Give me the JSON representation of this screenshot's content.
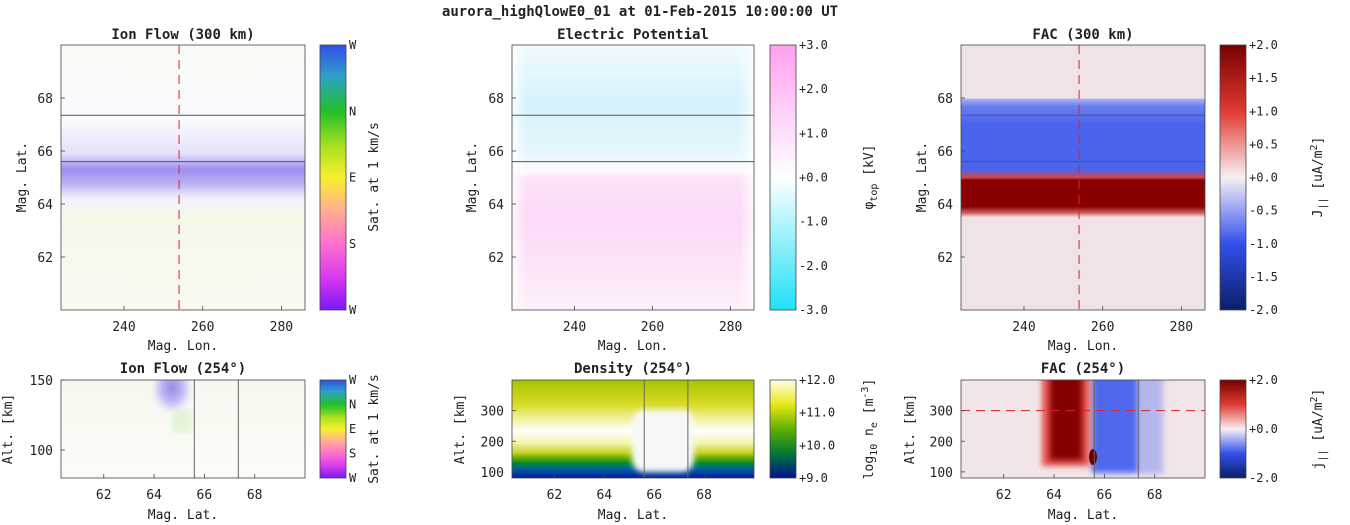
{
  "title": "aurora_highQlowE0_01 at 01-Feb-2015 10:00:00 UT",
  "panels": {
    "ion_flow_top": {
      "title": "Ion Flow (300 km)",
      "xlabel": "Mag. Lon.",
      "ylabel": "Mag. Lat.",
      "cblabel": "Sat. at 1 km/s"
    },
    "potential_top": {
      "title": "Electric Potential",
      "xlabel": "Mag. Lon.",
      "ylabel": "Mag. Lat.",
      "cblabel_main": "φ",
      "cblabel_sub": "top",
      "cblabel_unit": " [kV]"
    },
    "fac_top": {
      "title": "FAC (300 km)",
      "xlabel": "Mag. Lon.",
      "ylabel": "Mag. Lat.",
      "cblabel_main": "J",
      "cblabel_sub": "||",
      "cblabel_unit": " [uA/m",
      "cblabel_sup": "2",
      "cblabel_end": "]"
    },
    "ion_flow_bottom": {
      "title": "Ion Flow (254°)",
      "xlabel": "Mag. Lat.",
      "ylabel": "Alt. [km]",
      "cblabel": "Sat. at 1 km/s"
    },
    "density_bottom": {
      "title": "Density (254°)",
      "xlabel": "Mag. Lat.",
      "ylabel": "Alt. [km]",
      "cblabel_main": "log",
      "cblabel_sub": "10",
      "cblabel_mid": " n",
      "cblabel_sub2": "e",
      "cblabel_unit": " [m",
      "cblabel_sup": "-3",
      "cblabel_end": "]"
    },
    "fac_bottom": {
      "title": "FAC (254°)",
      "xlabel": "Mag. Lat.",
      "ylabel": "Alt. [km]",
      "cblabel_main": "j",
      "cblabel_sub": "||",
      "cblabel_unit": " [uA/m",
      "cblabel_sup": "2",
      "cblabel_end": "]"
    }
  },
  "chart_data": [
    {
      "id": "ion_flow_top",
      "type": "heatmap",
      "xlim": [
        224,
        286
      ],
      "ylim": [
        60,
        70
      ],
      "xticks": [
        240,
        260,
        280
      ],
      "yticks": [
        62,
        64,
        66,
        68
      ],
      "hlines": [
        67.35,
        65.6
      ],
      "vline_dashed": 254,
      "colorbar": {
        "ticks": [
          "W",
          "N",
          "E",
          "S",
          "W"
        ]
      },
      "features": [
        {
          "kind": "band",
          "lat_center": 64.9,
          "width": 1.2,
          "direction": "W"
        }
      ]
    },
    {
      "id": "potential_top",
      "type": "heatmap",
      "xlim": [
        224,
        286
      ],
      "ylim": [
        60,
        70
      ],
      "xticks": [
        240,
        260,
        280
      ],
      "yticks": [
        62,
        64,
        66,
        68
      ],
      "hlines": [
        67.35,
        65.6
      ],
      "colorbar": {
        "range": [
          -3.0,
          3.0
        ],
        "ticks": [
          "+3.0",
          "+2.0",
          "+1.0",
          "+0.0",
          "-1.0",
          "-2.0",
          "-3.0"
        ],
        "colors": [
          "#ffa0f0",
          "#ffffff",
          "#20e0f8"
        ]
      },
      "features": [
        {
          "kind": "region",
          "lat_range": [
            65.2,
            70
          ],
          "value_kV": -0.3
        },
        {
          "kind": "region",
          "lat_range": [
            60,
            65.2
          ],
          "value_kV": 0.4
        }
      ]
    },
    {
      "id": "fac_top",
      "type": "heatmap",
      "xlim": [
        224,
        286
      ],
      "ylim": [
        60,
        70
      ],
      "xticks": [
        240,
        260,
        280
      ],
      "yticks": [
        62,
        64,
        66,
        68
      ],
      "hlines": [
        67.35,
        65.6
      ],
      "vline_dashed": 254,
      "colorbar": {
        "range": [
          -2.0,
          2.0
        ],
        "ticks": [
          "+2.0",
          "+1.5",
          "+1.0",
          "+0.5",
          "+0.0",
          "-0.5",
          "-1.0",
          "-1.5",
          "-2.0"
        ],
        "colors": [
          "#0b1e68",
          "#3250ec",
          "#f8f0f4",
          "#e03a30",
          "#780000"
        ]
      },
      "features": [
        {
          "kind": "band",
          "lat_range": [
            65.2,
            67.9
          ],
          "value": -1.0
        },
        {
          "kind": "band",
          "lat_range": [
            63.9,
            65.2
          ],
          "value": 2.0
        }
      ]
    },
    {
      "id": "ion_flow_bottom",
      "type": "heatmap",
      "xlim": [
        60.3,
        70
      ],
      "ylim": [
        80,
        150
      ],
      "xticks": [
        62,
        64,
        66,
        68
      ],
      "yticks": [
        100,
        150
      ],
      "vlines": [
        65.6,
        67.35
      ],
      "colorbar": {
        "ticks": [
          "W",
          "N",
          "E",
          "S",
          "W"
        ]
      },
      "features": [
        {
          "kind": "blob",
          "lat_range": [
            64.1,
            65.2
          ],
          "alt_range": [
            120,
            150
          ],
          "direction": "W"
        }
      ]
    },
    {
      "id": "density_bottom",
      "type": "heatmap",
      "xlim": [
        60.3,
        70
      ],
      "ylim": [
        80,
        400
      ],
      "xticks": [
        62,
        64,
        66,
        68
      ],
      "yticks": [
        100,
        200,
        300
      ],
      "vlines": [
        65.6,
        67.35
      ],
      "colorbar": {
        "range": [
          9.0,
          12.0
        ],
        "ticks": [
          "+12.0",
          "+11.0",
          "+10.0",
          "+9.0"
        ],
        "colors": [
          "#001090",
          "#008000",
          "#a0c800",
          "#f8f810",
          "#ffffe8"
        ]
      },
      "features": [
        {
          "kind": "peak_layer",
          "alt_km": 210,
          "log10_ne_peak": 11.9
        }
      ]
    },
    {
      "id": "fac_bottom",
      "type": "heatmap",
      "xlim": [
        60.3,
        70
      ],
      "ylim": [
        80,
        400
      ],
      "xticks": [
        62,
        64,
        66,
        68
      ],
      "yticks": [
        100,
        200,
        300
      ],
      "vlines": [
        65.6,
        67.35
      ],
      "hline_dashed": 300,
      "colorbar": {
        "range": [
          -2.0,
          2.0
        ],
        "ticks": [
          "+2.0",
          "+0.0",
          "-2.0"
        ],
        "colors": [
          "#0b1e68",
          "#3250ec",
          "#f8f0f4",
          "#e03a30",
          "#780000"
        ]
      },
      "features": [
        {
          "kind": "column",
          "lat_range": [
            63.8,
            65.2
          ],
          "alt_min": 135,
          "value": 2.0
        },
        {
          "kind": "column",
          "lat_range": [
            65.3,
            68.0
          ],
          "alt_min": 90,
          "value": -1.0
        }
      ]
    }
  ]
}
